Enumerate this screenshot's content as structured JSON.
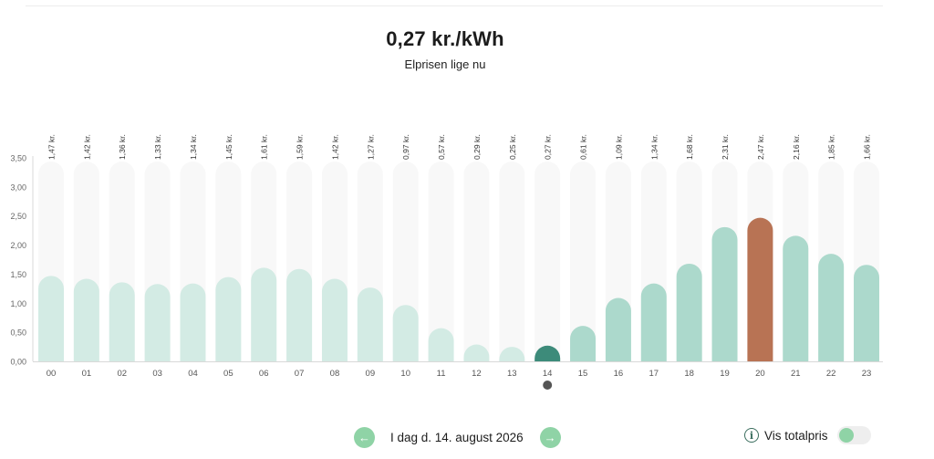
{
  "header": {
    "current_price": "0,27 kr./kWh",
    "subtitle": "Elprisen lige nu"
  },
  "chart_data": {
    "type": "bar",
    "categories": [
      "00",
      "01",
      "02",
      "03",
      "04",
      "05",
      "06",
      "07",
      "08",
      "09",
      "10",
      "11",
      "12",
      "13",
      "14",
      "15",
      "16",
      "17",
      "18",
      "19",
      "20",
      "21",
      "22",
      "23"
    ],
    "values": [
      1.47,
      1.42,
      1.36,
      1.33,
      1.34,
      1.45,
      1.61,
      1.59,
      1.42,
      1.27,
      0.97,
      0.57,
      0.29,
      0.25,
      0.27,
      0.61,
      1.09,
      1.34,
      1.68,
      2.31,
      2.47,
      2.16,
      1.85,
      1.66
    ],
    "value_labels": [
      "1,47 kr.",
      "1,42 kr.",
      "1,36 kr.",
      "1,33 kr.",
      "1,34 kr.",
      "1,45 kr.",
      "1,61 kr.",
      "1,59 kr.",
      "1,42 kr.",
      "1,27 kr.",
      "0,97 kr.",
      "0,57 kr.",
      "0,29 kr.",
      "0,25 kr.",
      "0,27 kr.",
      "0,61 kr.",
      "1,09 kr.",
      "1,34 kr.",
      "1,68 kr.",
      "2,31 kr.",
      "2,47 kr.",
      "2,16 kr.",
      "1,85 kr.",
      "1,66 kr."
    ],
    "y_ticks": [
      "0,00",
      "0,50",
      "1,00",
      "1,50",
      "2,00",
      "2,50",
      "3,00",
      "3,50"
    ],
    "ylim": [
      0,
      3.5
    ],
    "current_hour_index": 14,
    "max_hour_index": 20,
    "grid": false,
    "colors": {
      "past": "#d3ebe4",
      "future": "#acd9cc",
      "current": "#3d8b7a",
      "max": "#b87354",
      "track": "#f8f8f8",
      "marker": "#555555"
    }
  },
  "navigation": {
    "prev_icon": "arrow-left-icon",
    "next_icon": "arrow-right-icon",
    "day_label": "I dag d. 14. august 2026"
  },
  "total_price": {
    "info_icon": "info-icon",
    "label": "Vis totalpris",
    "enabled": false
  }
}
